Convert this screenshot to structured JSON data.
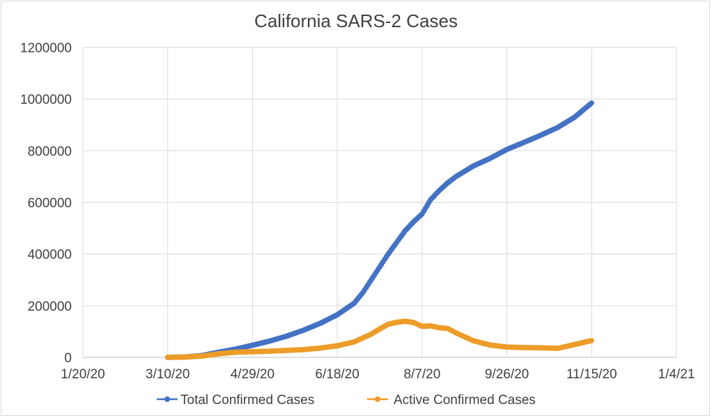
{
  "chart_data": {
    "type": "line",
    "title": "California SARS-2 Cases",
    "xlabel": "",
    "ylabel": "",
    "x_axis": {
      "kind": "date",
      "min": "2020-01-20",
      "max": "2021-01-04",
      "tick_labels": [
        "1/20/20",
        "3/10/20",
        "4/29/20",
        "6/18/20",
        "8/7/20",
        "9/26/20",
        "11/15/20",
        "1/4/21"
      ]
    },
    "y_axis": {
      "min": 0,
      "max": 1200000,
      "tick_labels": [
        "0",
        "200000",
        "400000",
        "600000",
        "800000",
        "1000000",
        "1200000"
      ]
    },
    "grid": true,
    "legend_position": "bottom",
    "series": [
      {
        "name": "Total Confirmed Cases",
        "color": "#4472c4",
        "marker": "circle",
        "points": [
          [
            "2020-03-10",
            200
          ],
          [
            "2020-03-20",
            1500
          ],
          [
            "2020-03-30",
            7000
          ],
          [
            "2020-04-09",
            20000
          ],
          [
            "2020-04-19",
            32000
          ],
          [
            "2020-04-29",
            47000
          ],
          [
            "2020-05-09",
            63000
          ],
          [
            "2020-05-19",
            82000
          ],
          [
            "2020-05-29",
            105000
          ],
          [
            "2020-06-08",
            132000
          ],
          [
            "2020-06-18",
            165000
          ],
          [
            "2020-06-28",
            210000
          ],
          [
            "2020-07-03",
            250000
          ],
          [
            "2020-07-08",
            300000
          ],
          [
            "2020-07-13",
            350000
          ],
          [
            "2020-07-18",
            400000
          ],
          [
            "2020-07-23",
            445000
          ],
          [
            "2020-07-28",
            490000
          ],
          [
            "2020-08-02",
            525000
          ],
          [
            "2020-08-07",
            555000
          ],
          [
            "2020-08-12",
            610000
          ],
          [
            "2020-08-17",
            645000
          ],
          [
            "2020-08-22",
            675000
          ],
          [
            "2020-08-27",
            700000
          ],
          [
            "2020-09-06",
            740000
          ],
          [
            "2020-09-16",
            770000
          ],
          [
            "2020-09-26",
            805000
          ],
          [
            "2020-10-06",
            832000
          ],
          [
            "2020-10-16",
            860000
          ],
          [
            "2020-10-26",
            890000
          ],
          [
            "2020-11-05",
            930000
          ],
          [
            "2020-11-15",
            985000
          ]
        ]
      },
      {
        "name": "Active Confirmed Cases",
        "color": "#ed9c28",
        "marker": "circle",
        "points": [
          [
            "2020-03-10",
            200
          ],
          [
            "2020-03-20",
            1200
          ],
          [
            "2020-03-30",
            5000
          ],
          [
            "2020-04-09",
            14000
          ],
          [
            "2020-04-19",
            20000
          ],
          [
            "2020-04-29",
            22000
          ],
          [
            "2020-05-09",
            24000
          ],
          [
            "2020-05-19",
            27000
          ],
          [
            "2020-05-29",
            30000
          ],
          [
            "2020-06-08",
            36000
          ],
          [
            "2020-06-18",
            45000
          ],
          [
            "2020-06-28",
            60000
          ],
          [
            "2020-07-03",
            75000
          ],
          [
            "2020-07-08",
            90000
          ],
          [
            "2020-07-13",
            110000
          ],
          [
            "2020-07-18",
            128000
          ],
          [
            "2020-07-23",
            136000
          ],
          [
            "2020-07-28",
            140000
          ],
          [
            "2020-08-02",
            135000
          ],
          [
            "2020-08-07",
            120000
          ],
          [
            "2020-08-12",
            122000
          ],
          [
            "2020-08-17",
            115000
          ],
          [
            "2020-08-22",
            112000
          ],
          [
            "2020-08-27",
            95000
          ],
          [
            "2020-09-01",
            80000
          ],
          [
            "2020-09-06",
            65000
          ],
          [
            "2020-09-16",
            48000
          ],
          [
            "2020-09-26",
            40000
          ],
          [
            "2020-10-06",
            38000
          ],
          [
            "2020-10-16",
            37000
          ],
          [
            "2020-10-26",
            35000
          ],
          [
            "2020-11-05",
            50000
          ],
          [
            "2020-11-15",
            65000
          ]
        ]
      }
    ]
  }
}
